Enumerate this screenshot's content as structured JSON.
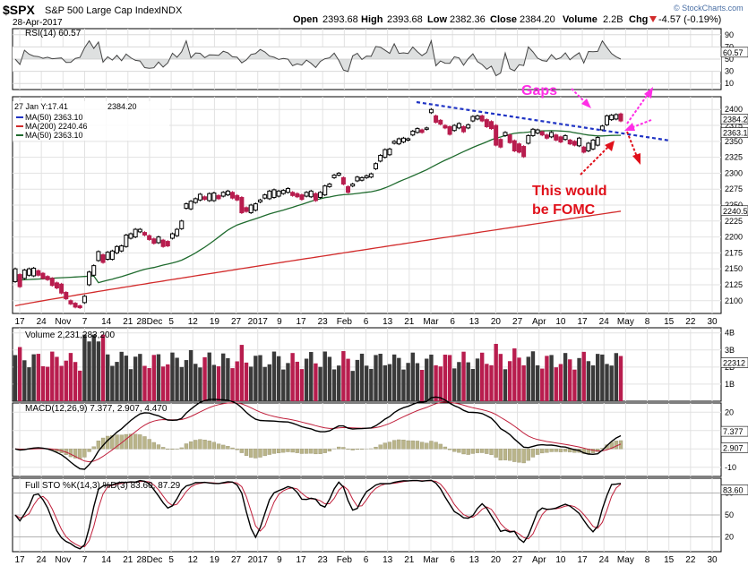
{
  "header": {
    "symbol": "$SPX",
    "name": "S&P 500 Large Cap Index",
    "exchange": "INDX",
    "date": "28-Apr-2017",
    "open_label": "Open",
    "open": "2393.68",
    "high_label": "High",
    "high": "2393.68",
    "low_label": "Low",
    "low": "2382.36",
    "close_label": "Close",
    "close": "2384.20",
    "volume_label": "Volume",
    "volume": "2.2B",
    "chg_label": "Chg",
    "chg": "-4.57 (-0.19%)",
    "chg_icon": "down-triangle-icon",
    "watermark": "© StockCharts.com"
  },
  "colors": {
    "up": "#000000",
    "down": "#b81d4e",
    "ma50": "#1f6b2e",
    "ma200": "#d22b2b",
    "rsi": "#444444",
    "macd": "#000000",
    "signal": "#c0203c",
    "hist": "#b9b48a",
    "stoK": "#000000",
    "stoD": "#c0203c",
    "trend": "#1f33c4",
    "arrow_pink": "#ff2ee6",
    "arrow_red": "#e0101a",
    "fill_band": "#c8cccc"
  },
  "x_axis_labels": [
    "17",
    "24",
    "Nov",
    "7",
    "14",
    "21",
    "28Dec",
    "5",
    "12",
    "19",
    "27",
    "2017",
    "9",
    "17",
    "23",
    "Feb",
    "6",
    "13",
    "21",
    "Mar",
    "6",
    "13",
    "20",
    "27",
    "Apr",
    "10",
    "17",
    "24",
    "May",
    "8",
    "15",
    "22",
    "30"
  ],
  "panels": {
    "rsi": {
      "legend": "RSI(14) 60.57",
      "value": "60.57",
      "ticks": [
        "90",
        "70",
        "50",
        "30",
        "10"
      ]
    },
    "price": {
      "legend_close": "2384.20",
      "legend_tooltip": "27 Jan Y:17.41",
      "ma_legends": [
        "MA(50) 2363.10",
        "MA(200) 2240.46",
        "MA(50) 2363.10"
      ],
      "ticks": [
        "2400",
        "2375",
        "2350",
        "2325",
        "2300",
        "2275",
        "2250",
        "2225",
        "2200",
        "2175",
        "2150",
        "2125",
        "2100"
      ],
      "value_tags": [
        "2384.2",
        "2363.1",
        "2240.5"
      ]
    },
    "volume": {
      "legend": "Volume 2,231,283,200",
      "ticks": [
        "4B",
        "3B",
        "2B",
        "1B"
      ],
      "value_tag": "22312"
    },
    "macd": {
      "legend": "MACD(12,26,9) 7.377, 2.907, 4.470",
      "ticks": [
        "20",
        "10",
        "0",
        "-10"
      ],
      "value_tags": [
        "7.377",
        "2.907"
      ]
    },
    "sto": {
      "legend": "Full STO %K(14,3) %D(3) 83.60, 87.29",
      "ticks": [
        "80",
        "50",
        "20"
      ],
      "value_tag": "83.60"
    }
  },
  "annotations": {
    "gaps": "Gaps",
    "fomc_line1": "This would",
    "fomc_line2": "be FOMC"
  },
  "chart_data": {
    "type": "candlestick",
    "title": "$SPX S&P 500 Large Cap Index INDX",
    "price_range": [
      2080,
      2420
    ],
    "price_series": [
      [
        2130,
        2150
      ],
      [
        2122,
        2141
      ],
      [
        2135,
        2148
      ],
      [
        2140,
        2150
      ],
      [
        2139,
        2151
      ],
      [
        2140,
        2147
      ],
      [
        2135,
        2143
      ],
      [
        2133,
        2138
      ],
      [
        2124,
        2135
      ],
      [
        2120,
        2128
      ],
      [
        2112,
        2126
      ],
      [
        2103,
        2113
      ],
      [
        2095,
        2100
      ],
      [
        2090,
        2096
      ],
      [
        2089,
        2092
      ],
      [
        2097,
        2107
      ],
      [
        2125,
        2145
      ],
      [
        2140,
        2155
      ],
      [
        2163,
        2177
      ],
      [
        2160,
        2172
      ],
      [
        2165,
        2176
      ],
      [
        2165,
        2178
      ],
      [
        2175,
        2185
      ],
      [
        2178,
        2186
      ],
      [
        2185,
        2203
      ],
      [
        2198,
        2205
      ],
      [
        2200,
        2212
      ],
      [
        2208,
        2212
      ],
      [
        2203,
        2207
      ],
      [
        2196,
        2202
      ],
      [
        2190,
        2197
      ],
      [
        2191,
        2200
      ],
      [
        2185,
        2195
      ],
      [
        2186,
        2193
      ],
      [
        2198,
        2205
      ],
      [
        2202,
        2212
      ],
      [
        2213,
        2225
      ],
      [
        2245,
        2252
      ],
      [
        2244,
        2256
      ],
      [
        2254,
        2260
      ],
      [
        2258,
        2267
      ],
      [
        2259,
        2263
      ],
      [
        2257,
        2268
      ],
      [
        2257,
        2269
      ],
      [
        2260,
        2265
      ],
      [
        2264,
        2270
      ],
      [
        2266,
        2272
      ],
      [
        2261,
        2270
      ],
      [
        2258,
        2265
      ],
      [
        2238,
        2262
      ],
      [
        2240,
        2246
      ],
      [
        2238,
        2250
      ],
      [
        2242,
        2252
      ],
      [
        2255,
        2258
      ],
      [
        2261,
        2266
      ],
      [
        2260,
        2272
      ],
      [
        2262,
        2274
      ],
      [
        2264,
        2272
      ],
      [
        2268,
        2273
      ],
      [
        2270,
        2276
      ],
      [
        2265,
        2270
      ],
      [
        2263,
        2268
      ],
      [
        2259,
        2266
      ],
      [
        2264,
        2270
      ],
      [
        2263,
        2272
      ],
      [
        2257,
        2268
      ],
      [
        2262,
        2270
      ],
      [
        2266,
        2280
      ],
      [
        2279,
        2283
      ],
      [
        2293,
        2297
      ],
      [
        2297,
        2300
      ],
      [
        2283,
        2293
      ],
      [
        2270,
        2279
      ],
      [
        2280,
        2283
      ],
      [
        2288,
        2294
      ],
      [
        2289,
        2293
      ],
      [
        2293,
        2296
      ],
      [
        2294,
        2299
      ],
      [
        2307,
        2315
      ],
      [
        2319,
        2328
      ],
      [
        2325,
        2337
      ],
      [
        2329,
        2338
      ],
      [
        2347,
        2350
      ],
      [
        2346,
        2354
      ],
      [
        2349,
        2355
      ],
      [
        2352,
        2354
      ],
      [
        2360,
        2366
      ],
      [
        2364,
        2370
      ],
      [
        2364,
        2368
      ],
      [
        2369,
        2371
      ],
      [
        2395,
        2400
      ],
      [
        2380,
        2390
      ],
      [
        2377,
        2383
      ],
      [
        2371,
        2375
      ],
      [
        2361,
        2373
      ],
      [
        2367,
        2375
      ],
      [
        2371,
        2378
      ],
      [
        2365,
        2373
      ],
      [
        2371,
        2376
      ],
      [
        2382,
        2389
      ],
      [
        2385,
        2390
      ],
      [
        2382,
        2390
      ],
      [
        2373,
        2384
      ],
      [
        2370,
        2381
      ],
      [
        2344,
        2375
      ],
      [
        2341,
        2353
      ],
      [
        2359,
        2364
      ],
      [
        2348,
        2360
      ],
      [
        2335,
        2351
      ],
      [
        2333,
        2346
      ],
      [
        2326,
        2342
      ],
      [
        2347,
        2359
      ],
      [
        2359,
        2369
      ],
      [
        2363,
        2368
      ],
      [
        2360,
        2365
      ],
      [
        2355,
        2360
      ],
      [
        2357,
        2364
      ],
      [
        2352,
        2360
      ],
      [
        2349,
        2357
      ],
      [
        2353,
        2359
      ],
      [
        2346,
        2352
      ],
      [
        2344,
        2350
      ],
      [
        2343,
        2355
      ],
      [
        2333,
        2341
      ],
      [
        2335,
        2347
      ],
      [
        2338,
        2352
      ],
      [
        2344,
        2356
      ],
      [
        2368,
        2374
      ],
      [
        2376,
        2390
      ],
      [
        2384,
        2391
      ],
      [
        2385,
        2392
      ],
      [
        2382,
        2393
      ]
    ],
    "ma50": {
      "range": [
        2135,
        2363.1
      ]
    },
    "ma200": {
      "range": [
        2092,
        2240.46
      ]
    },
    "rsi_last": 60.57,
    "macd_last": [
      7.377,
      2.907,
      4.47
    ],
    "sto_last": [
      83.6,
      87.29
    ],
    "volume_last": 2231283200
  }
}
